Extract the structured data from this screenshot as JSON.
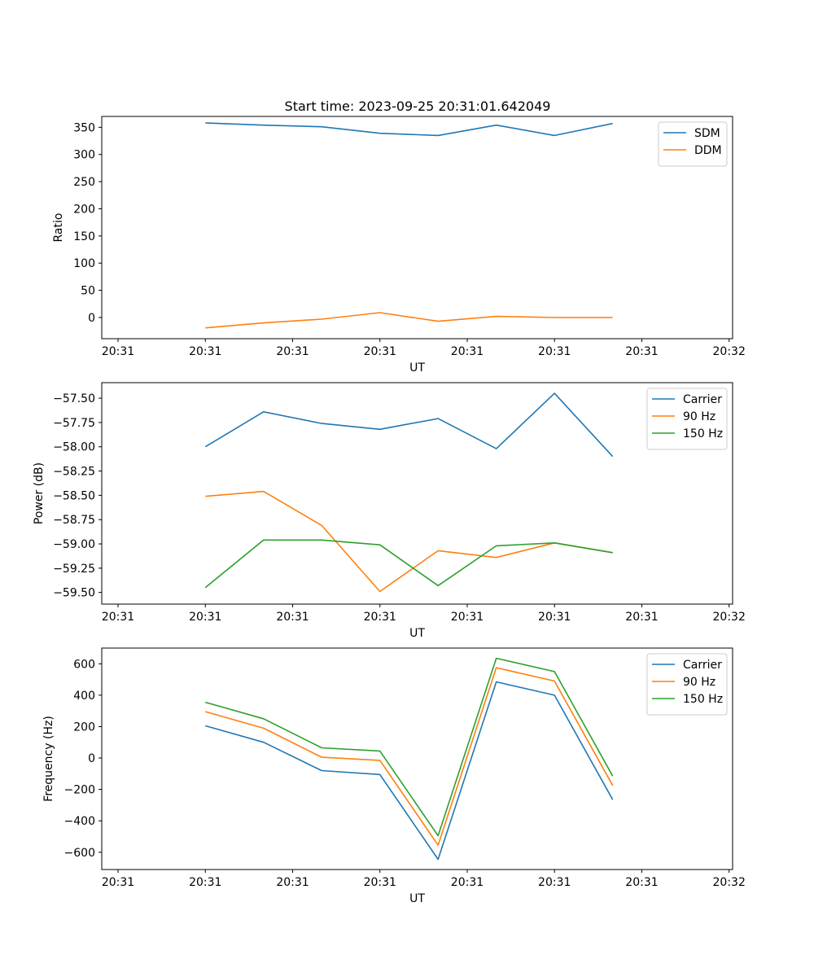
{
  "chart_data": {
    "title": "Start time: 2023-09-25 20:31:01.642049",
    "x_ticks": [
      "20:31",
      "20:31",
      "20:31",
      "20:31",
      "20:31",
      "20:31",
      "20:31",
      "20:32"
    ],
    "x_tick_values": [
      -1.5,
      0,
      1.5,
      3,
      4.5,
      6,
      7.5,
      9
    ],
    "x": [
      0,
      1,
      2,
      3,
      4,
      5,
      6,
      7
    ],
    "xlim": [
      -1.78,
      9.06
    ],
    "charts": [
      {
        "type": "line",
        "xlabel": "UT",
        "ylabel": "Ratio",
        "ylim": [
          -39,
          370
        ],
        "y_ticks": [
          0,
          50,
          100,
          150,
          200,
          250,
          300,
          350
        ],
        "y_tick_labels": [
          "0",
          "50",
          "100",
          "150",
          "200",
          "250",
          "300",
          "350"
        ],
        "legend_position": "top-right",
        "series": [
          {
            "name": "SDM",
            "color": "#1f77b4",
            "values": [
              358,
              354,
              351,
              339,
              335,
              354,
              335,
              357
            ]
          },
          {
            "name": "DDM",
            "color": "#ff7f0e",
            "values": [
              -19,
              -10,
              -3,
              9,
              -7,
              2,
              0,
              0
            ]
          }
        ]
      },
      {
        "type": "line",
        "xlabel": "UT",
        "ylabel": "Power (dB)",
        "ylim": [
          -59.62,
          -57.34
        ],
        "y_ticks": [
          -59.5,
          -59.25,
          -59.0,
          -58.75,
          -58.5,
          -58.25,
          -58.0,
          -57.75,
          -57.5
        ],
        "y_tick_labels": [
          "−59.50",
          "−59.25",
          "−59.00",
          "−58.75",
          "−58.50",
          "−58.25",
          "−58.00",
          "−57.75",
          "−57.50"
        ],
        "legend_position": "top-right",
        "series": [
          {
            "name": "Carrier",
            "color": "#1f77b4",
            "values": [
              -58.0,
              -57.64,
              -57.76,
              -57.82,
              -57.71,
              -58.02,
              -57.45,
              -58.1
            ]
          },
          {
            "name": "90 Hz",
            "color": "#ff7f0e",
            "values": [
              -58.51,
              -58.46,
              -58.81,
              -59.49,
              -59.07,
              -59.14,
              -58.99,
              -59.09
            ]
          },
          {
            "name": "150 Hz",
            "color": "#2ca02c",
            "values": [
              -59.45,
              -58.96,
              -58.96,
              -59.01,
              -59.43,
              -59.02,
              -58.99,
              -59.09
            ]
          }
        ]
      },
      {
        "type": "line",
        "xlabel": "UT",
        "ylabel": "Frequency (Hz)",
        "ylim": [
          -710,
          700
        ],
        "y_ticks": [
          -600,
          -400,
          -200,
          0,
          200,
          400,
          600
        ],
        "y_tick_labels": [
          "−600",
          "−400",
          "−200",
          "0",
          "200",
          "400",
          "600"
        ],
        "legend_position": "top-right",
        "series": [
          {
            "name": "Carrier",
            "color": "#1f77b4",
            "values": [
              205,
              100,
              -80,
              -105,
              -645,
              485,
              400,
              -265
            ]
          },
          {
            "name": "90 Hz",
            "color": "#ff7f0e",
            "values": [
              295,
              190,
              5,
              -15,
              -555,
              575,
              490,
              -175
            ]
          },
          {
            "name": "150 Hz",
            "color": "#2ca02c",
            "values": [
              355,
              250,
              65,
              45,
              -495,
              635,
              550,
              -115
            ]
          }
        ]
      }
    ]
  }
}
